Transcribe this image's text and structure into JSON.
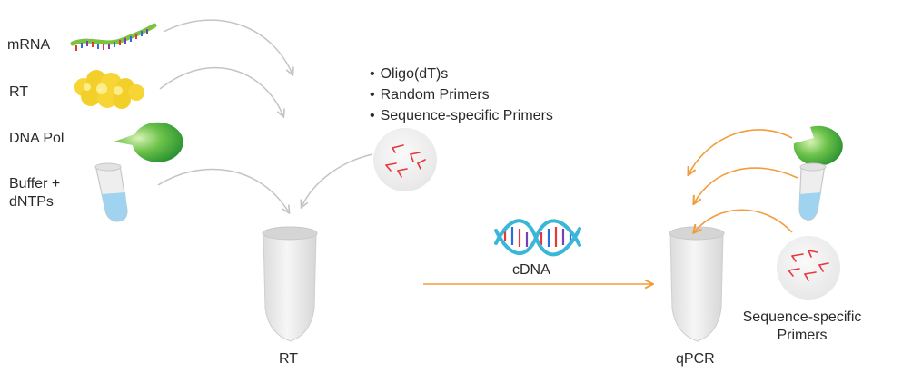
{
  "inputs": {
    "mrna": "mRNA",
    "rt": "RT",
    "dna_pol": "DNA Pol",
    "buffer_line1": "Buffer +",
    "buffer_line2": "dNTPs"
  },
  "primer_options": [
    "Oligo(dT)s",
    "Random Primers",
    "Sequence-specific Primers"
  ],
  "rt_tube_label": "RT",
  "cdna_label": "cDNA",
  "qpcr_tube_label": "qPCR",
  "qpcr_primers_line1": "Sequence-specific",
  "qpcr_primers_line2": "Primers",
  "colors": {
    "grey_arrow": "#c4c4c4",
    "orange_arrow": "#f39c3c",
    "primer_red": "#e8363a",
    "enzyme_green": "#3fae3a",
    "rt_yellow": "#f3cf2a",
    "buffer_blue": "#9fd3ef"
  }
}
